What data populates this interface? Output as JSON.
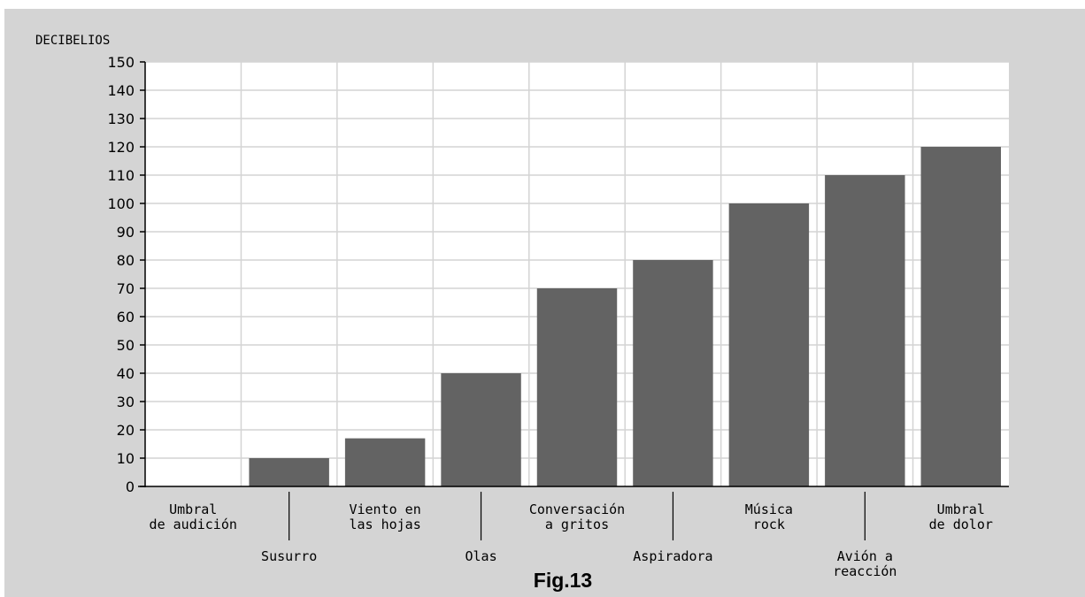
{
  "chart_data": {
    "type": "bar",
    "ylabel": "DECIBELIOS",
    "caption": "Fig.13",
    "categories": [
      [
        "Umbral",
        "de audición"
      ],
      [
        "Susurro"
      ],
      [
        "Viento en",
        "las hojas"
      ],
      [
        "Olas"
      ],
      [
        "Conversación",
        "a gritos"
      ],
      [
        "Aspiradora"
      ],
      [
        "Música",
        "rock"
      ],
      [
        "Avión a",
        "reacción"
      ],
      [
        "Umbral",
        "de dolor"
      ]
    ],
    "values": [
      0,
      10,
      17,
      40,
      70,
      80,
      100,
      110,
      120
    ],
    "ylim": [
      0,
      150
    ],
    "yticks": [
      0,
      10,
      20,
      30,
      40,
      50,
      60,
      70,
      80,
      90,
      100,
      110,
      120,
      130,
      140,
      150
    ],
    "grid": true,
    "colors": {
      "bar": "#636363",
      "grid": "#d4d4d4",
      "plot_bg": "#ffffff",
      "frame_bg": "#d4d4d4"
    }
  }
}
